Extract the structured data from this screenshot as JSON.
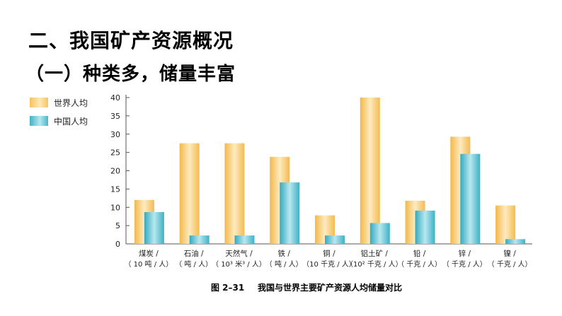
{
  "heading": "二、我国矿产资源概况",
  "subheading": "（一）种类多，储量丰富",
  "legend": {
    "world": "世界人均",
    "china": "中国人均"
  },
  "caption": {
    "figure_no": "图 2–31",
    "title": "我国与世界主要矿产资源人均储量对比"
  },
  "colors": {
    "world": "#f6c25d",
    "china": "#42b6c8",
    "axis": "#555555"
  },
  "chart_data": {
    "type": "bar",
    "categories": [
      {
        "name": "煤炭 /",
        "unit": "（ 10 吨 / 人）"
      },
      {
        "name": "石油 /",
        "unit": "（ 吨 / 人）"
      },
      {
        "name": "天然气 /",
        "unit": "（ 10³ 米³ / 人）"
      },
      {
        "name": "铁 /",
        "unit": "（ 吨 / 人）"
      },
      {
        "name": "铜 /",
        "unit": "（10 千克 / 人）"
      },
      {
        "name": "铝土矿 /",
        "unit": "（10² 千克 / 人）"
      },
      {
        "name": "铅 /",
        "unit": "（ 千克 / 人）"
      },
      {
        "name": "锌 /",
        "unit": "（ 千克 / 人）"
      },
      {
        "name": "镍 /",
        "unit": "（ 千克 / 人）"
      }
    ],
    "series": [
      {
        "name": "世界人均",
        "values": [
          12,
          27.5,
          27.5,
          23.8,
          7.8,
          40,
          11.8,
          29.3,
          10.5
        ]
      },
      {
        "name": "中国人均",
        "values": [
          8.7,
          2.3,
          2.3,
          16.8,
          2.3,
          5.7,
          9.1,
          24.6,
          1.3
        ]
      }
    ],
    "yticks": [
      0,
      5,
      10,
      15,
      20,
      25,
      30,
      35,
      40
    ],
    "ylim": [
      0,
      40
    ],
    "legend_position": "top-left",
    "grid": false
  }
}
